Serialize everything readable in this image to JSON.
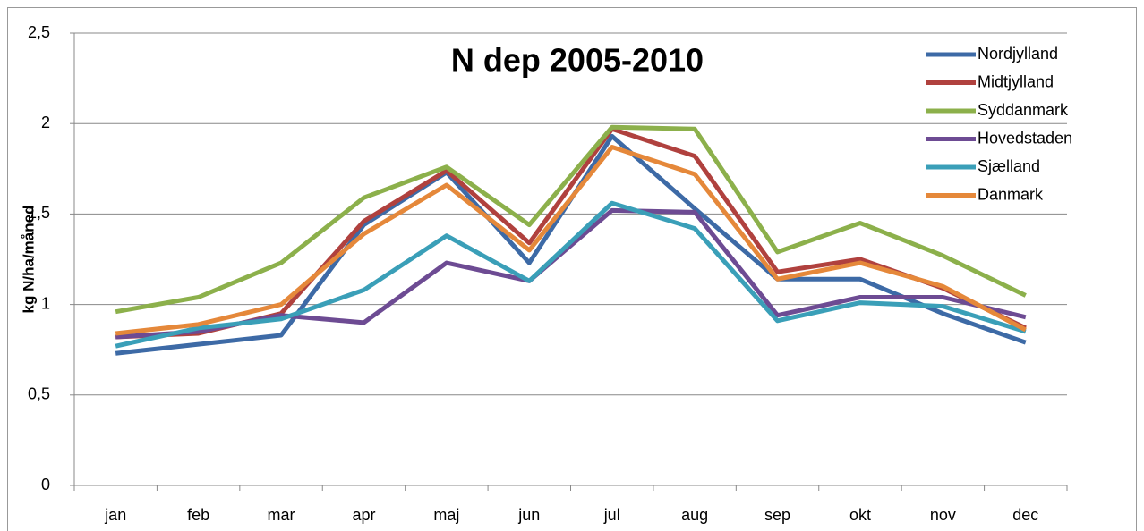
{
  "chart_data": {
    "type": "line",
    "title": "N dep 2005-2010",
    "y_label": "kg N/ha/måned",
    "categories": [
      "jan",
      "feb",
      "mar",
      "apr",
      "maj",
      "jun",
      "jul",
      "aug",
      "sep",
      "okt",
      "nov",
      "dec"
    ],
    "series": [
      {
        "name": "Nordjylland",
        "color": "#3d6aa6",
        "values": [
          0.73,
          0.78,
          0.83,
          1.44,
          1.73,
          1.23,
          1.93,
          1.53,
          1.14,
          1.14,
          0.95,
          0.79
        ]
      },
      {
        "name": "Midtjylland",
        "color": "#b0413e",
        "values": [
          0.82,
          0.84,
          0.95,
          1.46,
          1.74,
          1.34,
          1.97,
          1.82,
          1.18,
          1.25,
          1.09,
          0.87
        ]
      },
      {
        "name": "Syddanmark",
        "color": "#8cb04b",
        "values": [
          0.96,
          1.04,
          1.23,
          1.59,
          1.76,
          1.44,
          1.98,
          1.97,
          1.29,
          1.45,
          1.27,
          1.05
        ]
      },
      {
        "name": "Hovedstaden",
        "color": "#6d4b93",
        "values": [
          0.82,
          0.85,
          0.94,
          0.9,
          1.23,
          1.13,
          1.52,
          1.51,
          0.94,
          1.04,
          1.04,
          0.93
        ]
      },
      {
        "name": "Sjælland",
        "color": "#3a9fb8",
        "values": [
          0.77,
          0.87,
          0.92,
          1.08,
          1.38,
          1.13,
          1.56,
          1.42,
          0.91,
          1.01,
          0.99,
          0.85
        ]
      },
      {
        "name": "Danmark",
        "color": "#e5883a",
        "values": [
          0.84,
          0.89,
          1.0,
          1.39,
          1.66,
          1.3,
          1.87,
          1.72,
          1.14,
          1.23,
          1.1,
          0.86
        ]
      }
    ],
    "ylim": [
      0,
      2.5
    ],
    "yticks": [
      0,
      {
        "value": 0.5,
        "label": "0,5"
      },
      1,
      {
        "value": 1.5,
        "label": "1,5"
      },
      2,
      {
        "value": 2.5,
        "label": "2,5"
      }
    ],
    "grid": true,
    "legend": "top-right"
  }
}
